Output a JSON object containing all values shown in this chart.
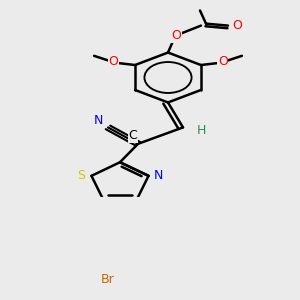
{
  "background_color": "#ebebeb",
  "bond_color": "#000000",
  "bond_width": 1.8,
  "figsize": [
    3.0,
    3.0
  ],
  "dpi": 100,
  "colors": {
    "O": "#ff0000",
    "N": "#0000ff",
    "S": "#cccc00",
    "Br": "#cc6600",
    "H": "#2e8b57",
    "C": "#000000"
  }
}
